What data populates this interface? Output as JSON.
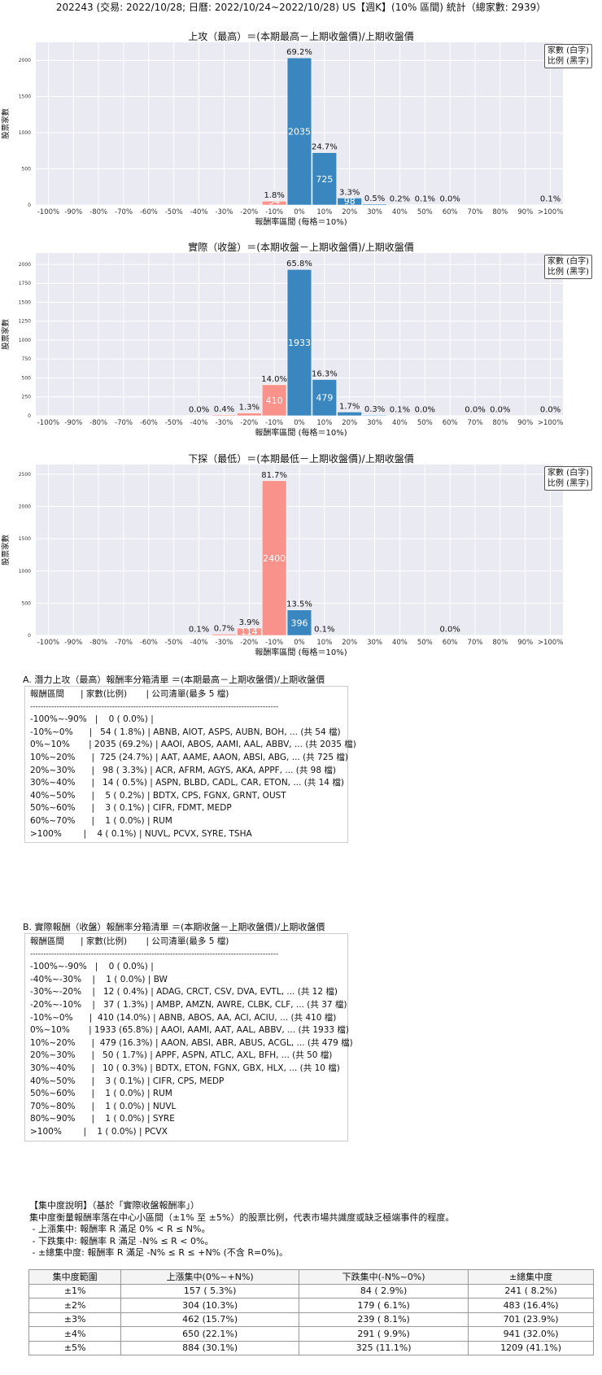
{
  "page_title": "202243 (交易: 2022/10/28; 日曆: 2022/10/24~2022/10/28) US【週K】(10% 區間) 統計（總家數: 2939）",
  "legend_lines": [
    "家數 (白字)",
    "比例 (黑字)"
  ],
  "colors": {
    "positive": "#3a87c0",
    "negative": "#f8928a",
    "plot_bg": "#eaeaf2",
    "grid": "#ffffff"
  },
  "chart_data": [
    {
      "type": "bar",
      "title": "上攻（最高）＝(本期最高－上期收盤價)/上期收盤價",
      "xlabel": "報酬率區間 (每格＝10%)",
      "ylabel": "股票家數",
      "categories": [
        "-100%",
        "-90%",
        "-80%",
        "-70%",
        "-60%",
        "-50%",
        "-40%",
        "-30%",
        "-20%",
        "-10%",
        "0%",
        "10%",
        "20%",
        "30%",
        "40%",
        "50%",
        "60%",
        "70%",
        "80%",
        "90%",
        ">100%"
      ],
      "yticks": [
        "0",
        "500",
        "1000",
        "1500",
        "2000"
      ],
      "ylim": [
        0,
        2250
      ],
      "bars": [
        {
          "idx": 9,
          "count": 54,
          "count_label": "54",
          "pct_label": "1.8%",
          "sign": "neg"
        },
        {
          "idx": 10,
          "count": 2035,
          "count_label": "2035",
          "pct_label": "69.2%",
          "sign": "pos"
        },
        {
          "idx": 11,
          "count": 725,
          "count_label": "725",
          "pct_label": "24.7%",
          "sign": "pos"
        },
        {
          "idx": 12,
          "count": 98,
          "count_label": "98",
          "pct_label": "3.3%",
          "sign": "pos"
        },
        {
          "idx": 13,
          "count": 14,
          "count_label": "",
          "pct_label": "0.5%",
          "sign": "pos"
        },
        {
          "idx": 14,
          "count": 5,
          "count_label": "",
          "pct_label": "0.2%",
          "sign": "pos"
        },
        {
          "idx": 15,
          "count": 3,
          "count_label": "",
          "pct_label": "0.1%",
          "sign": "pos"
        },
        {
          "idx": 16,
          "count": 1,
          "count_label": "",
          "pct_label": "0.0%",
          "sign": "pos"
        },
        {
          "idx": 20,
          "count": 4,
          "count_label": "",
          "pct_label": "0.1%",
          "sign": "pos"
        }
      ]
    },
    {
      "type": "bar",
      "title": "實際（收盤）＝(本期收盤－上期收盤價)/上期收盤價",
      "xlabel": "報酬率區間 (每格＝10%)",
      "ylabel": "股票家數",
      "categories": [
        "-100%",
        "-90%",
        "-80%",
        "-70%",
        "-60%",
        "-50%",
        "-40%",
        "-30%",
        "-20%",
        "-10%",
        "0%",
        "10%",
        "20%",
        "30%",
        "40%",
        "50%",
        "60%",
        "70%",
        "80%",
        "90%",
        ">100%"
      ],
      "yticks": [
        "0",
        "250",
        "500",
        "750",
        "1000",
        "1250",
        "1500",
        "1750",
        "2000"
      ],
      "ylim": [
        0,
        2150
      ],
      "bars": [
        {
          "idx": 6,
          "count": 1,
          "count_label": "",
          "pct_label": "0.0%",
          "sign": "neg"
        },
        {
          "idx": 7,
          "count": 12,
          "count_label": "",
          "pct_label": "0.4%",
          "sign": "neg"
        },
        {
          "idx": 8,
          "count": 37,
          "count_label": "",
          "pct_label": "1.3%",
          "sign": "neg"
        },
        {
          "idx": 9,
          "count": 410,
          "count_label": "410",
          "pct_label": "14.0%",
          "sign": "neg"
        },
        {
          "idx": 10,
          "count": 1933,
          "count_label": "1933",
          "pct_label": "65.8%",
          "sign": "pos"
        },
        {
          "idx": 11,
          "count": 479,
          "count_label": "479",
          "pct_label": "16.3%",
          "sign": "pos"
        },
        {
          "idx": 12,
          "count": 50,
          "count_label": "",
          "pct_label": "1.7%",
          "sign": "pos"
        },
        {
          "idx": 13,
          "count": 10,
          "count_label": "",
          "pct_label": "0.3%",
          "sign": "pos"
        },
        {
          "idx": 14,
          "count": 3,
          "count_label": "",
          "pct_label": "0.1%",
          "sign": "pos"
        },
        {
          "idx": 15,
          "count": 1,
          "count_label": "",
          "pct_label": "0.0%",
          "sign": "pos"
        },
        {
          "idx": 17,
          "count": 1,
          "count_label": "",
          "pct_label": "0.0%",
          "sign": "pos"
        },
        {
          "idx": 18,
          "count": 1,
          "count_label": "",
          "pct_label": "0.0%",
          "sign": "pos"
        },
        {
          "idx": 20,
          "count": 1,
          "count_label": "",
          "pct_label": "0.0%",
          "sign": "pos"
        }
      ]
    },
    {
      "type": "bar",
      "title": "下探（最低）＝(本期最低－上期收盤價)/上期收盤價",
      "xlabel": "報酬率區間 (每格＝10%)",
      "ylabel": "股票家數",
      "categories": [
        "-100%",
        "-90%",
        "-80%",
        "-70%",
        "-60%",
        "-50%",
        "-40%",
        "-30%",
        "-20%",
        "-10%",
        "0%",
        "10%",
        "20%",
        "30%",
        "40%",
        "50%",
        "60%",
        "70%",
        "80%",
        "90%",
        ">100%"
      ],
      "yticks": [
        "0",
        "500",
        "1000",
        "1500",
        "2000",
        "2500"
      ],
      "ylim": [
        0,
        2650
      ],
      "bars": [
        {
          "idx": 6,
          "count": 2,
          "count_label": "",
          "pct_label": "0.1%",
          "sign": "neg"
        },
        {
          "idx": 7,
          "count": 21,
          "count_label": "",
          "pct_label": "0.7%",
          "sign": "neg"
        },
        {
          "idx": 8,
          "count": 114,
          "count_label": "114",
          "pct_label": "3.9%",
          "sign": "neg"
        },
        {
          "idx": 9,
          "count": 2400,
          "count_label": "2400",
          "pct_label": "81.7%",
          "sign": "neg"
        },
        {
          "idx": 10,
          "count": 396,
          "count_label": "396",
          "pct_label": "13.5%",
          "sign": "pos"
        },
        {
          "idx": 11,
          "count": 4,
          "count_label": "",
          "pct_label": "0.1%",
          "sign": "pos"
        },
        {
          "idx": 16,
          "count": 1,
          "count_label": "",
          "pct_label": "0.0%",
          "sign": "pos"
        }
      ]
    }
  ],
  "list_a": {
    "title": "A. 潛力上攻（最高）報酬率分箱清單 ＝(本期最高－上期收盤價)/上期收盤價",
    "rows": [
      "報酬區間      | 家數(比例)       | 公司清單(最多 5 檔)",
      "----------------------------------------------------------------------------------------------",
      "-100%~-90%   |    0 ( 0.0%) |",
      "-10%~0%      |   54 ( 1.8%) | ABNB, AIOT, ASPS, AUBN, BOH, ... (共 54 檔)",
      "0%~10%       | 2035 (69.2%) | AAOI, ABOS, AAMI, AAL, ABBV, ... (共 2035 檔)",
      "10%~20%      |  725 (24.7%) | AAT, AAME, AAON, ABSI, ABG, ... (共 725 檔)",
      "20%~30%      |   98 ( 3.3%) | ACR, AFRM, AGYS, AKA, APPF, ... (共 98 檔)",
      "30%~40%      |   14 ( 0.5%) | ASPN, BLBD, CADL, CAR, ETON, ... (共 14 檔)",
      "40%~50%      |    5 ( 0.2%) | BDTX, CPS, FGNX, GRNT, OUST",
      "50%~60%      |    3 ( 0.1%) | CIFR, FDMT, MEDP",
      "60%~70%      |    1 ( 0.0%) | RUM",
      ">100%        |    4 ( 0.1%) | NUVL, PCVX, SYRE, TSHA"
    ]
  },
  "list_b": {
    "title": "B. 實際報酬（收盤）報酬率分箱清單 ＝(本期收盤－上期收盤價)/上期收盤價",
    "rows": [
      "報酬區間      | 家數(比例)       | 公司清單(最多 5 檔)",
      "----------------------------------------------------------------------------------------------",
      "-100%~-90%   |    0 ( 0.0%) |",
      "-40%~-30%    |    1 ( 0.0%) | BW",
      "-30%~-20%    |   12 ( 0.4%) | ADAG, CRCT, CSV, DVA, EVTL, ... (共 12 檔)",
      "-20%~-10%    |   37 ( 1.3%) | AMBP, AMZN, AWRE, CLBK, CLF, ... (共 37 檔)",
      "-10%~0%      |  410 (14.0%) | ABNB, ABOS, AA, ACI, ACIU, ... (共 410 檔)",
      "0%~10%       | 1933 (65.8%) | AAOI, AAMI, AAT, AAL, ABBV, ... (共 1933 檔)",
      "10%~20%      |  479 (16.3%) | AAON, ABSI, ABR, ABUS, ACGL, ... (共 479 檔)",
      "20%~30%      |   50 ( 1.7%) | APPF, ASPN, ATLC, AXL, BFH, ... (共 50 檔)",
      "30%~40%      |   10 ( 0.3%) | BDTX, ETON, FGNX, GBX, HLX, ... (共 10 檔)",
      "40%~50%      |    3 ( 0.1%) | CIFR, CPS, MEDP",
      "50%~60%      |    1 ( 0.0%) | RUM",
      "70%~80%      |    1 ( 0.0%) | NUVL",
      "80%~90%      |    1 ( 0.0%) | SYRE",
      ">100%        |    1 ( 0.0%) | PCVX"
    ]
  },
  "concentration": {
    "note_lines": [
      "【集中度說明】（基於「實際收盤報酬率」）",
      "集中度衡量報酬率落在中心小區間（±1% 至 ±5%）的股票比例，代表市場共識度或缺乏極端事件的程度。",
      " - 上漲集中: 報酬率 R 滿足 0% < R ≤ N%。",
      " - 下跌集中: 報酬率 R 滿足 -N% ≤ R < 0%。",
      " - ±總集中度: 報酬率 R 滿足 -N% ≤ R ≤ +N% (不含 R=0%)。"
    ],
    "headers": [
      "集中度範圍",
      "上漲集中(0%~+N%)",
      "下跌集中(-N%~0%)",
      "±總集中度"
    ],
    "rows": [
      [
        "±1%",
        "157 ( 5.3%)",
        "84 ( 2.9%)",
        "241 ( 8.2%)"
      ],
      [
        "±2%",
        "304 (10.3%)",
        "179 ( 6.1%)",
        "483 (16.4%)"
      ],
      [
        "±3%",
        "462 (15.7%)",
        "239 ( 8.1%)",
        "701 (23.9%)"
      ],
      [
        "±4%",
        "650 (22.1%)",
        "291 ( 9.9%)",
        "941 (32.0%)"
      ],
      [
        "±5%",
        "884 (30.1%)",
        "325 (11.1%)",
        "1209 (41.1%)"
      ]
    ]
  }
}
